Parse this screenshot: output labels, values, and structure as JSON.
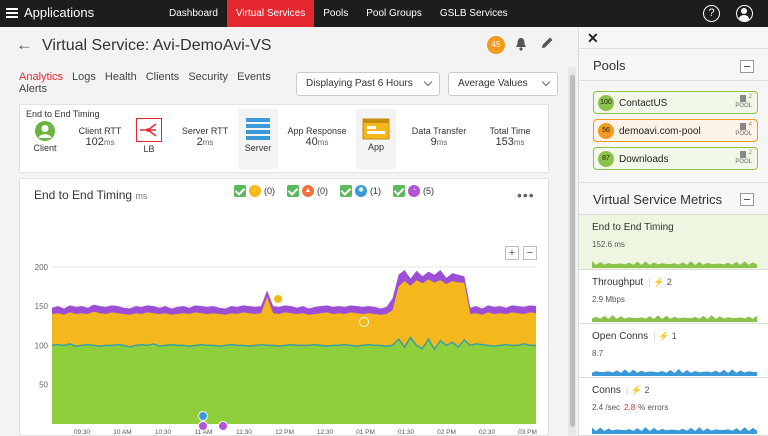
{
  "topbar": {
    "title": "Applications",
    "nav": [
      "Dashboard",
      "Virtual Services",
      "Pools",
      "Pool Groups",
      "GSLB Services"
    ],
    "active_nav": "Virtual Services",
    "help_label": "?"
  },
  "vs": {
    "back_label": "←",
    "title": "Virtual Service: Avi-DemoAvi-VS",
    "health_score": "45",
    "tabs": [
      "Analytics",
      "Logs",
      "Health",
      "Clients",
      "Security",
      "Events"
    ],
    "tab_alerts": "Alerts",
    "active_tab": "Analytics",
    "time_range": "Displaying Past 6 Hours",
    "value_mode": "Average Values"
  },
  "timing": {
    "label": "End to End Timing",
    "client_label": "Client",
    "client_rtt_label": "Client RTT",
    "client_rtt_value": "102",
    "lb_label": "LB",
    "server_rtt_label": "Server RTT",
    "server_rtt_value": "2",
    "server_label": "Server",
    "app_response_label": "App Response",
    "app_response_value": "40",
    "app_label": "App",
    "data_transfer_label": "Data Transfer",
    "data_transfer_value": "9",
    "total_label": "Total Time",
    "total_value": "153",
    "unit": "ms"
  },
  "chart_card": {
    "title": "End to End Timing",
    "unit": "ms",
    "legend_counts": [
      "(0)",
      "(0)",
      "(1)",
      "(5)"
    ],
    "more_label": "•••",
    "zoom_in": "+",
    "zoom_out": "−"
  },
  "chart_data": {
    "type": "area",
    "x_ticks": [
      "09:30",
      "10 AM",
      "10:30",
      "11 AM",
      "11:30",
      "12 PM",
      "12:30",
      "01 PM",
      "01:30",
      "02 PM",
      "02:30",
      "03 PM"
    ],
    "yticks": [
      50,
      100,
      150,
      200
    ],
    "ylim": [
      0,
      210
    ],
    "series": [
      {
        "values": [
          100,
          101,
          100,
          102,
          99,
          100,
          101,
          100,
          99,
          100,
          100,
          101,
          100,
          98,
          100,
          101,
          100,
          102,
          99,
          100,
          101,
          100,
          100,
          99,
          100,
          101,
          100,
          100,
          99,
          100,
          101,
          100,
          100,
          99,
          100,
          101,
          100,
          100,
          99,
          100,
          101,
          100,
          100,
          100,
          101,
          100,
          99,
          100,
          100,
          101,
          100,
          99,
          100,
          101,
          100,
          100,
          99,
          100,
          108,
          98,
          110,
          100,
          96,
          108,
          95,
          106,
          100,
          104,
          98,
          107,
          100,
          102,
          101,
          100,
          99,
          100,
          101,
          100,
          100,
          102,
          100,
          100
        ],
        "color": "#8fcf3c"
      },
      {
        "values": [
          140,
          141,
          139,
          142,
          140,
          141,
          140,
          143,
          141,
          140,
          142,
          141,
          140,
          139,
          141,
          140,
          142,
          141,
          140,
          141,
          139,
          140,
          141,
          140,
          142,
          141,
          140,
          141,
          140,
          139,
          141,
          140,
          142,
          141,
          140,
          141,
          162,
          141,
          140,
          142,
          141,
          140,
          141,
          139,
          140,
          141,
          142,
          140,
          141,
          140,
          142,
          141,
          140,
          141,
          140,
          139,
          140,
          145,
          175,
          182,
          176,
          183,
          179,
          184,
          180,
          183,
          178,
          182,
          180,
          180,
          140,
          141,
          139,
          142,
          140,
          141,
          140,
          142,
          141,
          140,
          142,
          141
        ],
        "color": "#f5b81c"
      },
      {
        "values": [
          148,
          150,
          147,
          151,
          149,
          150,
          148,
          152,
          150,
          149,
          151,
          150,
          148,
          147,
          150,
          149,
          151,
          150,
          148,
          150,
          147,
          149,
          150,
          148,
          151,
          150,
          149,
          150,
          148,
          147,
          150,
          149,
          151,
          150,
          149,
          150,
          170,
          150,
          149,
          151,
          150,
          148,
          150,
          147,
          149,
          150,
          151,
          149,
          150,
          149,
          151,
          150,
          149,
          150,
          149,
          147,
          149,
          160,
          190,
          196,
          185,
          195,
          188,
          194,
          190,
          196,
          186,
          192,
          190,
          188,
          148,
          150,
          147,
          151,
          149,
          150,
          148,
          151,
          150,
          149,
          151,
          150
        ],
        "color": "#9c4fd6"
      }
    ],
    "grid": true
  },
  "side": {
    "close_label": "✕",
    "pools_title": "Pools",
    "pools": [
      {
        "score": "100",
        "name": "ContactUS",
        "tag": "POOL",
        "count": "2",
        "color": "#8bc34a",
        "bg": "#f2f8e8"
      },
      {
        "score": "56",
        "name": "demoavi.com-pool",
        "tag": "POOL",
        "count": "4",
        "color": "#f39a1f",
        "bg": "#fdf3e6"
      },
      {
        "score": "87",
        "name": "Downloads",
        "tag": "POOL",
        "count": "2",
        "color": "#8bc34a",
        "bg": "#f2f8e8"
      }
    ],
    "metrics_title": "Virtual Service Metrics",
    "metrics": [
      {
        "title": "End to End Timing",
        "value": "152.6",
        "unit": "ms",
        "alerts": ""
      },
      {
        "title": "Throughput",
        "value": "2.9",
        "unit": "Mbps",
        "alerts": "2"
      },
      {
        "title": "Open Conns",
        "value": "8.7",
        "unit": "",
        "alerts": "1"
      },
      {
        "title": "Conns",
        "value": "2.4",
        "unit": "/sec",
        "alerts": "2",
        "errors": "2.8",
        "errors_label": "% errors"
      }
    ]
  }
}
